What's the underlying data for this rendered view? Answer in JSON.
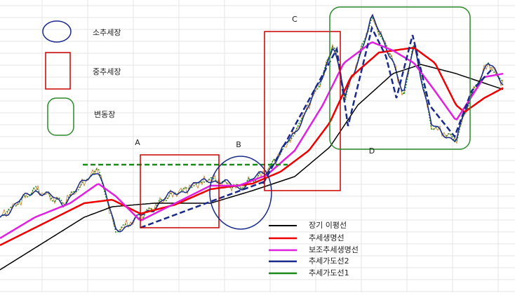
{
  "shape_labels": {
    "small_trend": "소추세장",
    "medium_trend": "중추세장",
    "range_market": "변동장"
  },
  "points": [
    "A",
    "B",
    "C",
    "D"
  ],
  "legend_labels": [
    "장기 이평선",
    "추세생명선",
    "보조추세생명선",
    "추세가도선2",
    "추세가도선1"
  ]
}
